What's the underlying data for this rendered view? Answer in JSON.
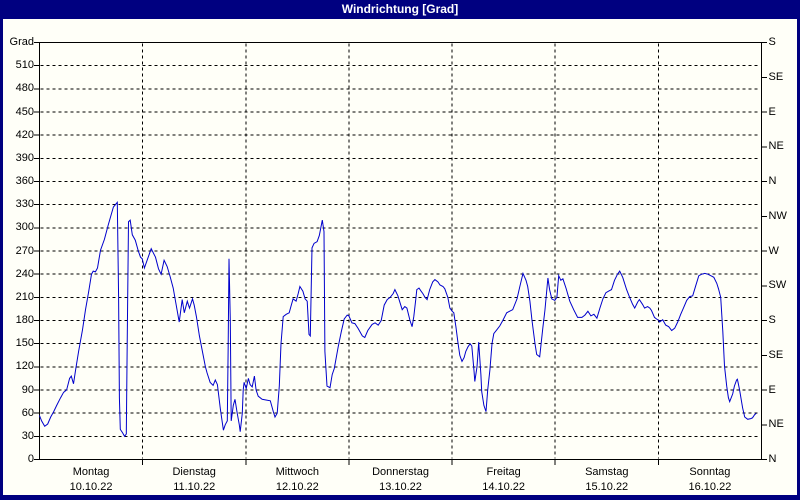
{
  "window": {
    "title": "Windrichtung [Grad]"
  },
  "colors": {
    "title_bar": "#000080",
    "border": "#000080",
    "panel": "#fffff8",
    "grid": "#000000",
    "line": "#0000cc",
    "title_text": "#ffffff"
  },
  "chart_data": {
    "type": "line",
    "title": "Windrichtung [Grad]",
    "y_unit_label": "Grad",
    "y_range": [
      0,
      540
    ],
    "y_tick_step": 30,
    "y_tick_labels": [
      0,
      30,
      60,
      90,
      120,
      150,
      180,
      210,
      240,
      270,
      300,
      330,
      360,
      390,
      420,
      450,
      480,
      510
    ],
    "right_axis_labels": [
      {
        "value": 0,
        "text": "N"
      },
      {
        "value": 45,
        "text": "NE"
      },
      {
        "value": 90,
        "text": "E"
      },
      {
        "value": 135,
        "text": "SE"
      },
      {
        "value": 180,
        "text": "S"
      },
      {
        "value": 225,
        "text": "SW"
      },
      {
        "value": 270,
        "text": "W"
      },
      {
        "value": 315,
        "text": "NW"
      },
      {
        "value": 360,
        "text": "N"
      },
      {
        "value": 405,
        "text": "NE"
      },
      {
        "value": 450,
        "text": "E"
      },
      {
        "value": 495,
        "text": "SE"
      },
      {
        "value": 540,
        "text": "S"
      }
    ],
    "x_unit": "hours since Monday 00:00",
    "x_range": [
      0,
      168
    ],
    "days": [
      {
        "name": "Montag",
        "date": "10.10.22"
      },
      {
        "name": "Dienstag",
        "date": "11.10.22"
      },
      {
        "name": "Mittwoch",
        "date": "12.10.22"
      },
      {
        "name": "Donnerstag",
        "date": "13.10.22"
      },
      {
        "name": "Freitag",
        "date": "14.10.22"
      },
      {
        "name": "Samstag",
        "date": "15.10.22"
      },
      {
        "name": "Sonntag",
        "date": "16.10.22"
      }
    ],
    "grid": "dashed",
    "legend": "none",
    "series": [
      {
        "name": "Windrichtung",
        "color": "#0000cc",
        "points": [
          [
            0,
            57
          ],
          [
            0.5,
            50
          ],
          [
            1.2,
            43
          ],
          [
            1.9,
            46
          ],
          [
            2.6,
            55
          ],
          [
            3.3,
            62
          ],
          [
            4,
            70
          ],
          [
            4.9,
            80
          ],
          [
            5.6,
            87
          ],
          [
            6.3,
            90
          ],
          [
            7,
            105
          ],
          [
            7.4,
            108
          ],
          [
            7.9,
            98
          ],
          [
            8.4,
            116
          ],
          [
            9.1,
            140
          ],
          [
            10,
            168
          ],
          [
            10.7,
            194
          ],
          [
            11.4,
            216
          ],
          [
            12.1,
            240
          ],
          [
            12.5,
            244
          ],
          [
            13,
            243
          ],
          [
            13.5,
            248
          ],
          [
            14.2,
            271
          ],
          [
            15.1,
            285
          ],
          [
            16,
            304
          ],
          [
            17.2,
            327
          ],
          [
            18.1,
            333
          ],
          [
            18.4,
            210
          ],
          [
            18.6,
            80
          ],
          [
            18.8,
            39
          ],
          [
            19.3,
            35
          ],
          [
            19.8,
            30
          ],
          [
            20.2,
            33
          ],
          [
            20.4,
            150
          ],
          [
            20.7,
            308
          ],
          [
            21.1,
            310
          ],
          [
            21.6,
            291
          ],
          [
            22.3,
            284
          ],
          [
            23,
            270
          ],
          [
            23.5,
            262
          ],
          [
            23.9,
            260
          ],
          [
            24.4,
            248
          ],
          [
            25.3,
            262
          ],
          [
            26,
            273
          ],
          [
            27,
            262
          ],
          [
            27.7,
            247
          ],
          [
            28.3,
            240
          ],
          [
            29,
            258
          ],
          [
            29.7,
            250
          ],
          [
            30.4,
            237
          ],
          [
            31.1,
            222
          ],
          [
            31.8,
            200
          ],
          [
            32.5,
            178
          ],
          [
            33.2,
            207
          ],
          [
            33.7,
            190
          ],
          [
            34.4,
            205
          ],
          [
            34.9,
            196
          ],
          [
            35.6,
            208
          ],
          [
            36,
            200
          ],
          [
            36.5,
            185
          ],
          [
            37.2,
            160
          ],
          [
            37.9,
            140
          ],
          [
            38.6,
            120
          ],
          [
            39,
            112
          ],
          [
            39.7,
            100
          ],
          [
            40.4,
            96
          ],
          [
            40.9,
            103
          ],
          [
            41.4,
            97
          ],
          [
            42.1,
            65
          ],
          [
            42.8,
            38
          ],
          [
            43.2,
            45
          ],
          [
            43.7,
            50
          ],
          [
            43.9,
            150
          ],
          [
            44.1,
            260
          ],
          [
            44.4,
            180
          ],
          [
            44.6,
            50
          ],
          [
            45.1,
            70
          ],
          [
            45.5,
            78
          ],
          [
            46,
            60
          ],
          [
            46.5,
            45
          ],
          [
            46.7,
            36
          ],
          [
            47.2,
            60
          ],
          [
            47.4,
            90
          ],
          [
            47.6,
            100
          ],
          [
            48.1,
            92
          ],
          [
            48.6,
            105
          ],
          [
            49,
            97
          ],
          [
            49.5,
            94
          ],
          [
            50,
            108
          ],
          [
            50.4,
            90
          ],
          [
            50.9,
            82
          ],
          [
            51.8,
            78
          ],
          [
            52.7,
            77
          ],
          [
            53.7,
            76
          ],
          [
            54.4,
            62
          ],
          [
            54.8,
            55
          ],
          [
            55.3,
            60
          ],
          [
            55.8,
            95
          ],
          [
            56.2,
            150
          ],
          [
            56.7,
            185
          ],
          [
            57.4,
            188
          ],
          [
            58.1,
            190
          ],
          [
            58.6,
            200
          ],
          [
            59,
            208
          ],
          [
            59.7,
            205
          ],
          [
            60.2,
            215
          ],
          [
            60.6,
            224
          ],
          [
            61.3,
            218
          ],
          [
            61.8,
            208
          ],
          [
            62.3,
            205
          ],
          [
            62.7,
            162
          ],
          [
            63,
            160
          ],
          [
            63.4,
            274
          ],
          [
            63.9,
            280
          ],
          [
            64.6,
            282
          ],
          [
            65.1,
            290
          ],
          [
            65.8,
            310
          ],
          [
            66.2,
            295
          ],
          [
            66.4,
            140
          ],
          [
            66.9,
            95
          ],
          [
            67.6,
            93
          ],
          [
            68.1,
            110
          ],
          [
            68.6,
            118
          ],
          [
            69.5,
            146
          ],
          [
            70.2,
            165
          ],
          [
            70.9,
            182
          ],
          [
            71.6,
            187
          ],
          [
            72,
            186
          ],
          [
            72.7,
            177
          ],
          [
            73.4,
            176
          ],
          [
            74.1,
            170
          ],
          [
            75.1,
            160
          ],
          [
            75.7,
            158
          ],
          [
            76.4,
            167
          ],
          [
            77.4,
            175
          ],
          [
            78.1,
            177
          ],
          [
            78.8,
            174
          ],
          [
            79.5,
            180
          ],
          [
            80.2,
            200
          ],
          [
            80.9,
            207
          ],
          [
            81.6,
            210
          ],
          [
            82.3,
            215
          ],
          [
            82.7,
            220
          ],
          [
            83.4,
            212
          ],
          [
            84.4,
            194
          ],
          [
            85,
            198
          ],
          [
            85.5,
            196
          ],
          [
            86.2,
            180
          ],
          [
            86.7,
            172
          ],
          [
            87.1,
            185
          ],
          [
            87.6,
            210
          ],
          [
            87.8,
            220
          ],
          [
            88.3,
            222
          ],
          [
            88.8,
            218
          ],
          [
            89.2,
            215
          ],
          [
            89.7,
            210
          ],
          [
            90.2,
            207
          ],
          [
            90.8,
            220
          ],
          [
            91.5,
            230
          ],
          [
            92,
            233
          ],
          [
            92.7,
            230
          ],
          [
            93.2,
            226
          ],
          [
            93.9,
            224
          ],
          [
            94.3,
            221
          ],
          [
            95,
            210
          ],
          [
            95.5,
            196
          ],
          [
            96,
            192
          ],
          [
            96.4,
            190
          ],
          [
            96.9,
            172
          ],
          [
            97.4,
            150
          ],
          [
            97.8,
            135
          ],
          [
            98.3,
            127
          ],
          [
            98.8,
            132
          ],
          [
            99.2,
            140
          ],
          [
            99.7,
            146
          ],
          [
            100.2,
            150
          ],
          [
            100.6,
            147
          ],
          [
            101.1,
            115
          ],
          [
            101.3,
            101
          ],
          [
            101.8,
            120
          ],
          [
            102.2,
            152
          ],
          [
            102.7,
            110
          ],
          [
            102.9,
            88
          ],
          [
            103.4,
            70
          ],
          [
            103.9,
            62
          ],
          [
            104.3,
            90
          ],
          [
            104.8,
            116
          ],
          [
            105.3,
            150
          ],
          [
            105.7,
            163
          ],
          [
            106.4,
            168
          ],
          [
            107.1,
            173
          ],
          [
            107.8,
            180
          ],
          [
            108.7,
            190
          ],
          [
            109.4,
            192
          ],
          [
            110.1,
            194
          ],
          [
            111.1,
            208
          ],
          [
            111.8,
            225
          ],
          [
            112.5,
            241
          ],
          [
            113.2,
            232
          ],
          [
            113.6,
            224
          ],
          [
            114.1,
            205
          ],
          [
            114.6,
            180
          ],
          [
            115.3,
            150
          ],
          [
            115.7,
            136
          ],
          [
            116.4,
            133
          ],
          [
            117.1,
            170
          ],
          [
            117.6,
            193
          ],
          [
            118.3,
            235
          ],
          [
            118.7,
            220
          ],
          [
            119.2,
            208
          ],
          [
            119.9,
            206
          ],
          [
            120.4,
            210
          ],
          [
            120.8,
            238
          ],
          [
            121.3,
            232
          ],
          [
            121.8,
            234
          ],
          [
            122.5,
            222
          ],
          [
            123.4,
            205
          ],
          [
            124.3,
            194
          ],
          [
            125.2,
            184
          ],
          [
            126.2,
            184
          ],
          [
            126.9,
            187
          ],
          [
            127.6,
            192
          ],
          [
            128.3,
            186
          ],
          [
            129,
            188
          ],
          [
            129.7,
            183
          ],
          [
            130.4,
            196
          ],
          [
            131.1,
            208
          ],
          [
            131.8,
            216
          ],
          [
            132.4,
            218
          ],
          [
            133.1,
            220
          ],
          [
            133.8,
            232
          ],
          [
            134.5,
            240
          ],
          [
            135,
            244
          ],
          [
            135.7,
            236
          ],
          [
            136.6,
            220
          ],
          [
            137.3,
            210
          ],
          [
            138,
            201
          ],
          [
            138.5,
            196
          ],
          [
            139.2,
            204
          ],
          [
            139.6,
            207
          ],
          [
            140.3,
            201
          ],
          [
            140.8,
            196
          ],
          [
            141.5,
            198
          ],
          [
            142,
            196
          ],
          [
            142.4,
            193
          ],
          [
            143.1,
            184
          ],
          [
            143.6,
            182
          ],
          [
            144.1,
            180
          ],
          [
            144.3,
            178
          ],
          [
            145,
            181
          ],
          [
            145.7,
            174
          ],
          [
            146.4,
            172
          ],
          [
            147.1,
            167
          ],
          [
            147.8,
            170
          ],
          [
            148.5,
            178
          ],
          [
            149.2,
            188
          ],
          [
            149.9,
            197
          ],
          [
            150.6,
            206
          ],
          [
            151.3,
            211
          ],
          [
            152,
            212
          ],
          [
            152.7,
            225
          ],
          [
            153.4,
            238
          ],
          [
            154.1,
            240
          ],
          [
            154.8,
            241
          ],
          [
            155.5,
            240
          ],
          [
            156.2,
            238
          ],
          [
            156.9,
            236
          ],
          [
            157.6,
            228
          ],
          [
            158,
            221
          ],
          [
            158.5,
            210
          ],
          [
            159,
            166
          ],
          [
            159.4,
            121
          ],
          [
            159.9,
            95
          ],
          [
            160.3,
            80
          ],
          [
            160.6,
            75
          ],
          [
            161.3,
            85
          ],
          [
            161.7,
            95
          ],
          [
            162.2,
            103
          ],
          [
            162.4,
            104
          ],
          [
            162.9,
            90
          ],
          [
            163.6,
            67
          ],
          [
            164.1,
            55
          ],
          [
            164.8,
            52
          ],
          [
            165.5,
            53
          ],
          [
            165.9,
            54
          ],
          [
            166.4,
            58
          ],
          [
            166.8,
            60
          ]
        ]
      }
    ]
  }
}
